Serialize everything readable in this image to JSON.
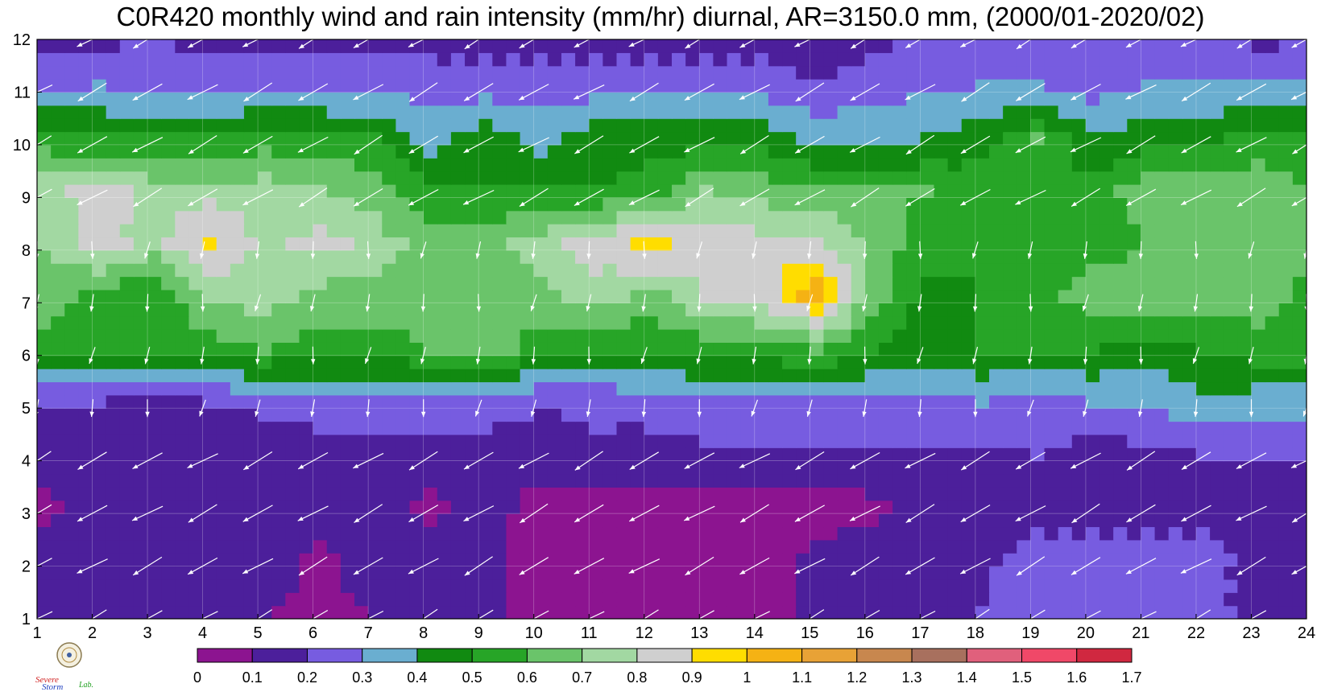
{
  "chart_title": "C0R420 monthly wind and rain intensity (mm/hr) diurnal, AR=3150.0 mm, (2000/01-2020/02)",
  "logo": {
    "text_top": "Severe",
    "text_bottom": "Storm",
    "text_suffix": "Lab."
  },
  "chart_data": {
    "type": "heatmap",
    "title": "C0R420 monthly wind and rain intensity (mm/hr) diurnal, AR=3150.0 mm, (2000/01-2020/02)",
    "xlabel": "",
    "ylabel": "",
    "xlim": [
      1,
      24
    ],
    "ylim": [
      1,
      12
    ],
    "x_ticks": [
      "1",
      "2",
      "3",
      "4",
      "5",
      "6",
      "7",
      "8",
      "9",
      "10",
      "11",
      "12",
      "13",
      "14",
      "15",
      "16",
      "17",
      "18",
      "19",
      "20",
      "21",
      "22",
      "23",
      "24"
    ],
    "y_ticks": [
      "1",
      "2",
      "3",
      "4",
      "5",
      "6",
      "7",
      "8",
      "9",
      "10",
      "11",
      "12"
    ],
    "grid": true,
    "colorbar": {
      "levels": [
        "0",
        "0.1",
        "0.2",
        "0.3",
        "0.4",
        "0.5",
        "0.6",
        "0.7",
        "0.8",
        "0.9",
        "1",
        "1.1",
        "1.2",
        "1.3",
        "1.4",
        "1.5",
        "1.6",
        "1.7"
      ],
      "colors": [
        "#8c1490",
        "#4c1f9b",
        "#775ce0",
        "#6aaed0",
        "#118a11",
        "#27a527",
        "#6ac46a",
        "#a2d8a2",
        "#cfcfcf",
        "#ffdd00",
        "#f5b214",
        "#e8a236",
        "#c8874e",
        "#a8705e",
        "#e0607c",
        "#f04868",
        "#d02840"
      ]
    },
    "rows_description": "monthly rain intensity (mm/hr) by hour (x=1..24) for month y=1..12",
    "rows": [
      [
        0.15,
        0.12,
        0.13,
        0.15,
        0.1,
        0.08,
        0.1,
        0.15,
        0.12,
        0.05,
        0.05,
        0.03,
        0.05,
        0.06,
        0.12,
        0.15,
        0.15,
        0.2,
        0.25,
        0.25,
        0.25,
        0.25,
        0.15,
        0.15
      ],
      [
        0.15,
        0.15,
        0.15,
        0.15,
        0.15,
        0.08,
        0.15,
        0.15,
        0.12,
        0.05,
        0.05,
        0.05,
        0.05,
        0.05,
        0.12,
        0.15,
        0.15,
        0.18,
        0.25,
        0.25,
        0.25,
        0.25,
        0.15,
        0.15
      ],
      [
        0.08,
        0.15,
        0.15,
        0.15,
        0.15,
        0.15,
        0.15,
        0.08,
        0.15,
        0.05,
        0.05,
        0.05,
        0.06,
        0.05,
        0.05,
        0.08,
        0.15,
        0.15,
        0.15,
        0.15,
        0.15,
        0.15,
        0.15,
        0.15
      ],
      [
        0.15,
        0.15,
        0.15,
        0.15,
        0.15,
        0.15,
        0.15,
        0.15,
        0.15,
        0.18,
        0.18,
        0.15,
        0.18,
        0.18,
        0.18,
        0.18,
        0.18,
        0.18,
        0.2,
        0.15,
        0.18,
        0.2,
        0.2,
        0.2
      ],
      [
        0.2,
        0.2,
        0.18,
        0.2,
        0.22,
        0.25,
        0.25,
        0.25,
        0.25,
        0.2,
        0.22,
        0.25,
        0.28,
        0.28,
        0.28,
        0.28,
        0.28,
        0.3,
        0.28,
        0.3,
        0.3,
        0.38,
        0.35,
        0.35
      ],
      [
        0.55,
        0.55,
        0.55,
        0.55,
        0.6,
        0.55,
        0.55,
        0.6,
        0.65,
        0.55,
        0.5,
        0.5,
        0.55,
        0.55,
        0.6,
        0.5,
        0.45,
        0.5,
        0.5,
        0.5,
        0.45,
        0.5,
        0.55,
        0.55
      ],
      [
        0.65,
        0.55,
        0.5,
        0.7,
        0.75,
        0.65,
        0.65,
        0.65,
        0.65,
        0.65,
        0.75,
        0.65,
        0.8,
        0.85,
        1.05,
        0.65,
        0.45,
        0.5,
        0.55,
        0.65,
        0.65,
        0.65,
        0.65,
        0.55
      ],
      [
        0.7,
        0.85,
        0.75,
        0.95,
        0.75,
        0.85,
        0.75,
        0.65,
        0.65,
        0.75,
        0.85,
        0.95,
        0.85,
        0.85,
        0.85,
        0.65,
        0.55,
        0.5,
        0.55,
        0.55,
        0.6,
        0.6,
        0.65,
        0.65
      ],
      [
        0.75,
        0.85,
        0.75,
        0.75,
        0.75,
        0.7,
        0.65,
        0.5,
        0.5,
        0.5,
        0.5,
        0.55,
        0.7,
        0.65,
        0.6,
        0.6,
        0.6,
        0.55,
        0.5,
        0.55,
        0.65,
        0.65,
        0.65,
        0.6
      ],
      [
        0.55,
        0.5,
        0.5,
        0.5,
        0.55,
        0.55,
        0.5,
        0.35,
        0.45,
        0.35,
        0.45,
        0.45,
        0.45,
        0.45,
        0.38,
        0.38,
        0.4,
        0.45,
        0.6,
        0.4,
        0.45,
        0.45,
        0.55,
        0.5
      ],
      [
        0.28,
        0.3,
        0.28,
        0.25,
        0.28,
        0.25,
        0.28,
        0.25,
        0.25,
        0.25,
        0.25,
        0.25,
        0.25,
        0.25,
        0.2,
        0.25,
        0.28,
        0.3,
        0.3,
        0.25,
        0.3,
        0.3,
        0.3,
        0.3
      ],
      [
        0.15,
        0.15,
        0.2,
        0.15,
        0.15,
        0.15,
        0.15,
        0.15,
        0.15,
        0.15,
        0.15,
        0.15,
        0.15,
        0.15,
        0.15,
        0.15,
        0.25,
        0.25,
        0.22,
        0.25,
        0.25,
        0.22,
        0.15,
        0.2
      ]
    ],
    "wind_vectors": "white arrows at each hour/month grid point, pointing generally south-west"
  }
}
